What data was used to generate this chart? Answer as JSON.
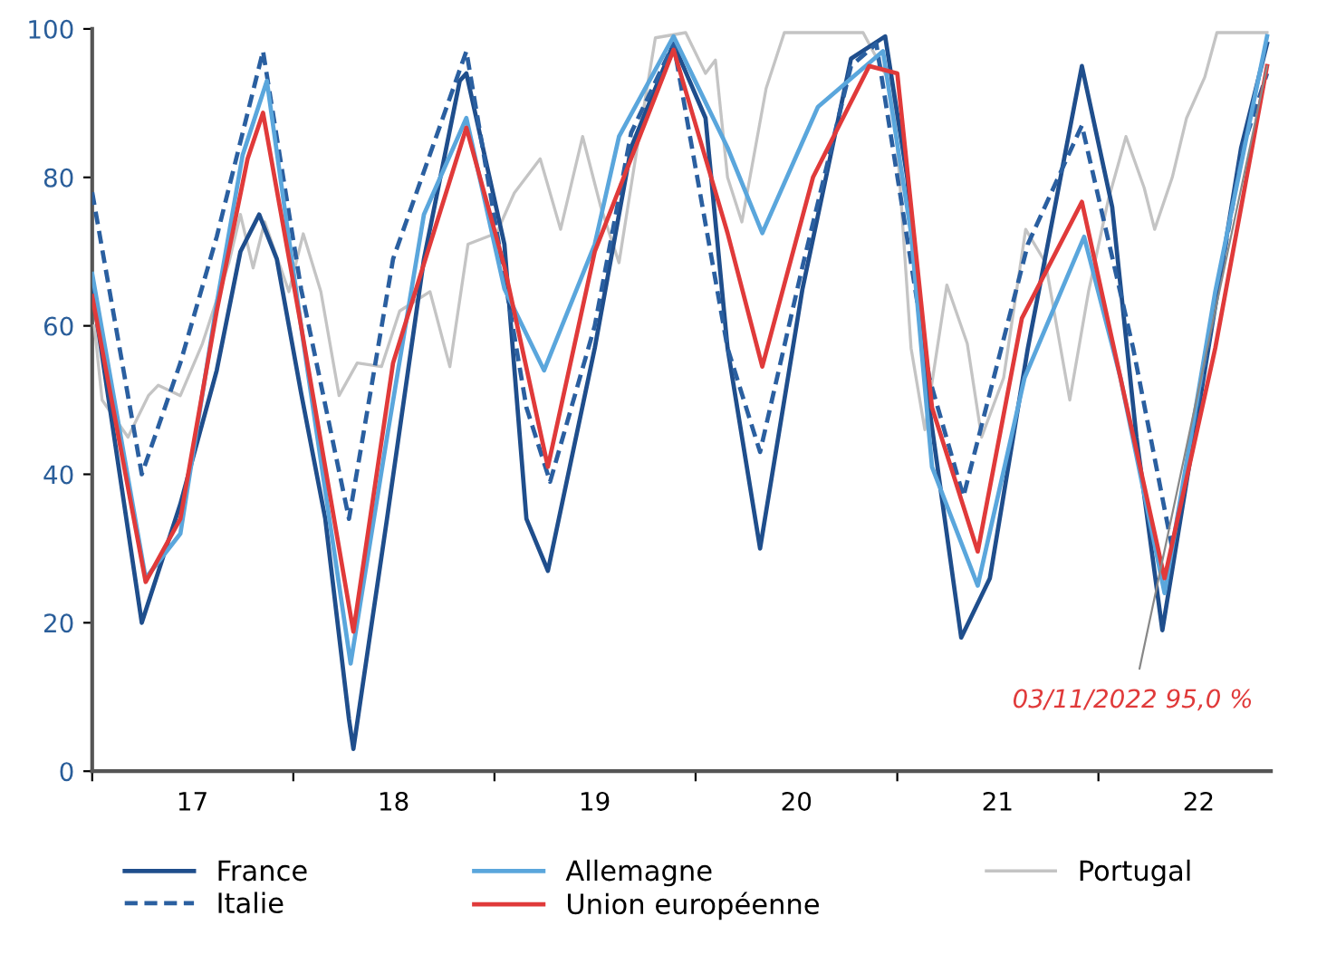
{
  "chart_data": {
    "type": "line",
    "xlim": [
      "2017-01-01",
      "2022-11-10"
    ],
    "ylim": [
      0,
      100
    ],
    "yticks": [
      0,
      20,
      40,
      60,
      80,
      100
    ],
    "xticks": [
      {
        "value": "2017-01-01",
        "label": null
      },
      {
        "value": "2017-07-02",
        "label": "17"
      },
      {
        "value": "2018-01-01",
        "label": null
      },
      {
        "value": "2018-07-02",
        "label": "18"
      },
      {
        "value": "2019-01-01",
        "label": null
      },
      {
        "value": "2019-07-02",
        "label": "19"
      },
      {
        "value": "2020-01-01",
        "label": null
      },
      {
        "value": "2020-07-02",
        "label": "20"
      },
      {
        "value": "2021-01-01",
        "label": null
      },
      {
        "value": "2021-07-02",
        "label": "21"
      },
      {
        "value": "2022-01-01",
        "label": null
      },
      {
        "value": "2022-07-02",
        "label": "22"
      }
    ],
    "grid": false,
    "legend": "bottom",
    "annotations": [
      {
        "text": "03/11/2022 95,0 %",
        "x": "2022-11-03",
        "y": 95
      }
    ],
    "series": [
      {
        "name": "France",
        "color": "#1f4e8c",
        "line_style": "solid",
        "x": [
          "2017-01-01",
          "2017-04-01",
          "2017-06-10",
          "2017-08-15",
          "2017-09-27",
          "2017-10-31",
          "2017-12-02",
          "2018-01-15",
          "2018-02-28",
          "2018-04-12",
          "2018-04-20",
          "2018-06-20",
          "2018-08-26",
          "2018-10-30",
          "2018-11-11",
          "2019-01-19",
          "2019-02-28",
          "2019-04-08",
          "2019-07-02",
          "2019-09-06",
          "2019-11-22",
          "2020-01-19",
          "2020-02-28",
          "2020-04-27",
          "2020-07-13",
          "2020-10-09",
          "2020-12-10",
          "2021-01-19",
          "2021-02-28",
          "2021-04-27",
          "2021-06-18",
          "2021-08-26",
          "2021-12-02",
          "2022-01-26",
          "2022-03-11",
          "2022-04-27",
          "2022-07-02",
          "2022-09-17",
          "2022-11-03"
        ],
        "values": [
          65,
          20,
          36,
          54,
          70,
          75,
          69,
          51,
          34,
          7,
          3,
          34,
          69,
          93,
          94,
          71,
          34,
          27,
          57,
          84,
          98,
          88,
          57,
          30,
          65,
          96,
          99,
          80,
          49,
          18,
          26,
          57,
          95,
          76,
          45,
          19,
          49,
          84,
          98
        ]
      },
      {
        "name": "Italie",
        "color": "#2a5fa0",
        "line_style": "dashed",
        "x": [
          "2017-01-01",
          "2017-04-01",
          "2017-06-10",
          "2017-08-15",
          "2017-11-07",
          "2018-01-15",
          "2018-04-12",
          "2018-07-01",
          "2018-11-11",
          "2019-02-28",
          "2019-04-12",
          "2019-07-02",
          "2019-09-06",
          "2019-11-22",
          "2020-02-28",
          "2020-04-27",
          "2020-07-13",
          "2020-10-09",
          "2020-11-24",
          "2021-02-28",
          "2021-05-01",
          "2021-08-26",
          "2021-12-02",
          "2022-03-05",
          "2022-05-15",
          "2022-09-20",
          "2022-11-03"
        ],
        "values": [
          78,
          40,
          55,
          72,
          97,
          65,
          34,
          69,
          97,
          49,
          39,
          60,
          86,
          98,
          57,
          43,
          68,
          95,
          98,
          53,
          37,
          71,
          87,
          57,
          30,
          84,
          94
        ]
      },
      {
        "name": "Allemagne",
        "color": "#5aa6dc",
        "line_style": "solid",
        "x": [
          "2017-01-01",
          "2017-04-08",
          "2017-06-10",
          "2017-08-15",
          "2017-10-01",
          "2017-11-14",
          "2018-01-15",
          "2018-04-15",
          "2018-06-20",
          "2018-08-26",
          "2018-11-11",
          "2019-01-19",
          "2019-04-01",
          "2019-07-02",
          "2019-08-15",
          "2019-11-22",
          "2020-02-28",
          "2020-05-01",
          "2020-08-10",
          "2020-12-06",
          "2021-01-26",
          "2021-03-05",
          "2021-05-27",
          "2021-08-20",
          "2021-12-06",
          "2022-02-10",
          "2022-05-01",
          "2022-08-01",
          "2022-11-03"
        ],
        "values": [
          67,
          26,
          32,
          63,
          83,
          93,
          60,
          14.5,
          45,
          75,
          88,
          65,
          54,
          71,
          85.5,
          99,
          84,
          72.5,
          89.5,
          97,
          72.5,
          41,
          25,
          53,
          72,
          53,
          24,
          64.6,
          99
        ]
      },
      {
        "name": "Union européenne",
        "color": "#e03a3a",
        "line_style": "solid",
        "x": [
          "2017-01-01",
          "2017-04-08",
          "2017-06-10",
          "2017-08-15",
          "2017-10-10",
          "2017-11-07",
          "2018-01-15",
          "2018-04-20",
          "2018-07-01",
          "2018-11-11",
          "2019-01-19",
          "2019-04-08",
          "2019-07-02",
          "2019-11-22",
          "2020-02-28",
          "2020-05-01",
          "2020-08-01",
          "2020-11-11",
          "2021-01-01",
          "2021-03-05",
          "2021-05-27",
          "2021-08-15",
          "2021-12-02",
          "2022-02-10",
          "2022-05-01",
          "2022-08-01",
          "2022-11-03"
        ],
        "values": [
          64,
          25.5,
          34,
          62,
          82.5,
          88.7,
          60,
          18.8,
          55,
          86.7,
          68,
          41,
          70,
          97.2,
          72.5,
          54.5,
          80,
          95,
          94,
          49,
          29.6,
          61,
          76.7,
          53,
          26,
          57,
          95
        ]
      },
      {
        "name": "Portugal",
        "color": "#c4c4c4",
        "line_style": "solid",
        "x": [
          "2017-01-05",
          "2017-01-19",
          "2017-03-07",
          "2017-04-13",
          "2017-05-01",
          "2017-06-10",
          "2017-07-20",
          "2017-09-06",
          "2017-09-27",
          "2017-10-20",
          "2017-11-10",
          "2017-12-24",
          "2018-01-19",
          "2018-02-20",
          "2018-03-25",
          "2018-04-27",
          "2018-06-10",
          "2018-07-13",
          "2018-09-06",
          "2018-10-12",
          "2018-11-14",
          "2019-01-05",
          "2019-02-06",
          "2019-03-25",
          "2019-05-01",
          "2019-06-10",
          "2019-07-13",
          "2019-08-15",
          "2019-09-17",
          "2019-10-20",
          "2019-12-14",
          "2020-01-19",
          "2020-02-06",
          "2020-02-28",
          "2020-03-25",
          "2020-05-08",
          "2020-06-10",
          "2020-10-31",
          "2020-12-24",
          "2021-01-05",
          "2021-01-26",
          "2021-02-20",
          "2021-04-01",
          "2021-05-08",
          "2021-06-03",
          "2021-07-13",
          "2021-08-22",
          "2021-09-27",
          "2021-11-10",
          "2021-12-14",
          "2022-01-19",
          "2022-02-20",
          "2022-03-25",
          "2022-04-13",
          "2022-05-15",
          "2022-06-10",
          "2022-07-13",
          "2022-08-04",
          "2022-11-03"
        ],
        "values": [
          60,
          50,
          45,
          50.6,
          52,
          50.6,
          57.6,
          68.5,
          75,
          67.8,
          74,
          64.6,
          72.4,
          64.6,
          50.6,
          55,
          54.5,
          62,
          64.6,
          54.5,
          71,
          72.5,
          77.9,
          82.5,
          73,
          85.5,
          76,
          68.5,
          84,
          98.8,
          99.5,
          94,
          95.8,
          80,
          74,
          92,
          99.5,
          99.5,
          92,
          80,
          57,
          46,
          65.5,
          57.6,
          45,
          53,
          73,
          68.5,
          50,
          64.6,
          77,
          85.5,
          78.6,
          73,
          80,
          88,
          93.5,
          99.5,
          99.5
        ]
      }
    ]
  }
}
